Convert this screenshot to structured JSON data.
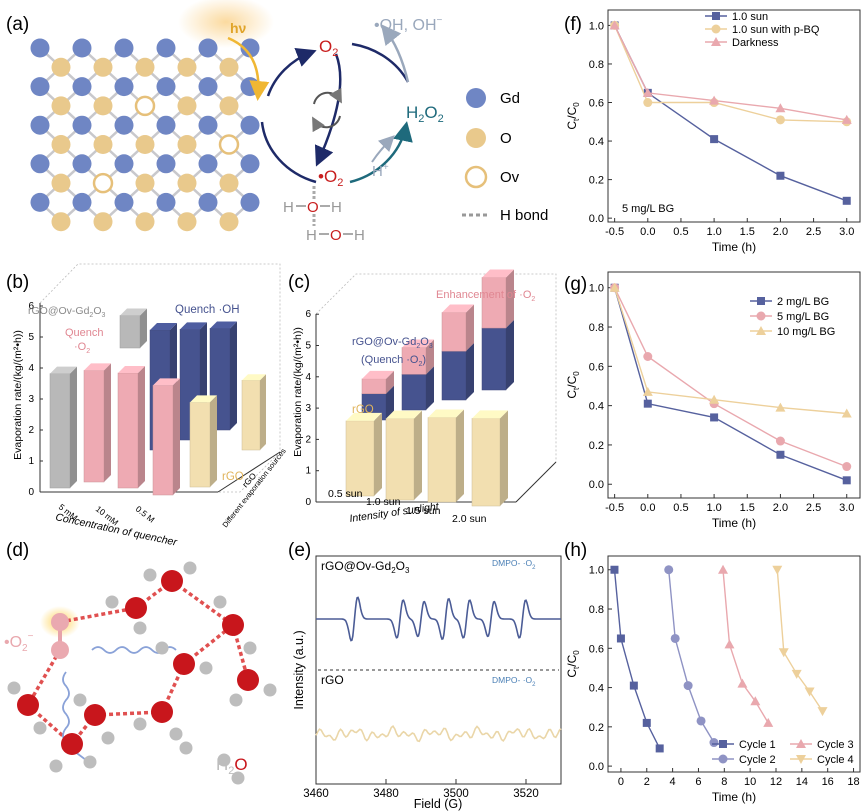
{
  "colors": {
    "gd": "#6f86c4",
    "o": "#e9c98c",
    "ov_stroke": "#e6c07a",
    "bond": "#c8c8cc",
    "navy": "#1e2a68",
    "teal": "#1e6a7c",
    "red": "#c81e1e",
    "slate": "#9aa8bc",
    "s_blue": "#56619e",
    "s_yellow": "#edd09b",
    "s_pink": "#e9a8ae",
    "bar_gray": "#b8b8b8",
    "bar_blue": "#46538f",
    "bar_pink": "#eeaab3",
    "bar_tan": "#f2dfb0",
    "epr_blue": "#4b5c96",
    "epr_tan": "#ead6a8",
    "water_o": "#c8161c",
    "water_h": "#bdbdbd",
    "hbond": "#e05050"
  },
  "panel_a": {
    "letter": "(a)",
    "hv": "hν",
    "o2": "O",
    "o2_sub": "2",
    "oh": "•OH, OH",
    "oh_sup": "−",
    "h2o2": "H",
    "h2o2_mid": "2",
    "h2o2_end": "O",
    "h2o2_sub": "2",
    "superoxide": "•O",
    "superoxide_sub": "2",
    "hplus": "H",
    "hplus_sup": "+",
    "legend": {
      "gd": "Gd",
      "o": "O",
      "ov": "Ov",
      "hbond": "H bond"
    },
    "water_h": "H",
    "water_o": "O"
  },
  "panel_b": {
    "letter": "(b)",
    "ylabel": "Evaporation rate/(kg/(m²•h))",
    "yticks": [
      "0",
      "1",
      "2",
      "3",
      "4",
      "5",
      "6"
    ],
    "xticks": [
      "5 mM",
      "10 mM",
      "0.5 M"
    ],
    "xlabel": "Concentration of quencher",
    "zlabel": "Different evaporation sources",
    "labels": {
      "rgo_gd": "rGO@Ov-Gd",
      "rgo_gd_sub": "2",
      "rgo_gd_end": "O",
      "rgo_gd_sub2": "3",
      "quench_o2": "Quench",
      "quench_o2_b": "·O",
      "quench_oh": "Quench ·OH",
      "rgo": "rGO"
    },
    "bars": {
      "gray": [
        4.1,
        4.2,
        4.2
      ],
      "pink": [
        3.6,
        3.5,
        3.4
      ],
      "blue": [
        4.3,
        4.3,
        4.2
      ],
      "tan": [
        2.6,
        2.6,
        2.5
      ]
    }
  },
  "panel_c": {
    "letter": "(c)",
    "ylabel": "Evaporation rate/(kg/(m²•h))",
    "yticks": [
      "0",
      "1",
      "2",
      "3",
      "4",
      "5",
      "6"
    ],
    "xticks": [
      "0.5 sun",
      "1.0 sun",
      "1.5 sun",
      "2.0 sun"
    ],
    "xlabel": "Intensity of sunlight",
    "labels": {
      "enh": "Enhancement of ·O",
      "rgo_gd": "rGO@Ov-Gd",
      "quench": "(Quench ·O",
      "rgo": "rGO"
    },
    "rgo": [
      2.4,
      2.6,
      2.7,
      2.8
    ],
    "blue": [
      1.4,
      1.9,
      2.6,
      3.3
    ],
    "pink": [
      0.5,
      0.9,
      1.3,
      1.7
    ]
  },
  "panel_d": {
    "letter": "(d)",
    "o2": "•O",
    "h2o_h": "H",
    "h2o_sub": "2",
    "h2o_o": "O"
  },
  "panel_e": {
    "letter": "(e)",
    "top_label": "rGO@Ov-Gd",
    "dmpo": "DMPO- ·O",
    "bottom_label": "rGO",
    "ylabel": "Intensity (a.u.)",
    "xlabel": "Field (G)",
    "xticks": [
      "3460",
      "3480",
      "3500",
      "3520"
    ]
  },
  "chart_data": [
    {
      "type": "line",
      "panel": "(f)",
      "x": [
        -0.5,
        0.0,
        1.0,
        2.0,
        3.0
      ],
      "series": [
        {
          "name": "1.0 sun",
          "values": [
            1.0,
            0.65,
            0.41,
            0.22,
            0.09
          ]
        },
        {
          "name": "1.0 sun with p-BQ",
          "values": [
            1.0,
            0.6,
            0.6,
            0.51,
            0.5
          ]
        },
        {
          "name": "Darkness",
          "values": [
            1.0,
            0.65,
            0.61,
            0.57,
            0.51
          ]
        }
      ],
      "annotation": "5 mg/L BG",
      "xlabel": "Time (h)",
      "ylabel": "C",
      "xlim": [
        -0.6,
        3.2
      ],
      "ylim": [
        -0.02,
        1.08
      ],
      "xticks": [
        -0.5,
        0.0,
        0.5,
        1.0,
        1.5,
        2.0,
        2.5,
        3.0
      ],
      "yticks": [
        0.0,
        0.2,
        0.4,
        0.6,
        0.8,
        1.0
      ],
      "legend": "top-right"
    },
    {
      "type": "line",
      "panel": "(g)",
      "x": [
        -0.5,
        0.0,
        1.0,
        2.0,
        3.0
      ],
      "series": [
        {
          "name": "2 mg/L BG",
          "values": [
            1.0,
            0.41,
            0.34,
            0.15,
            0.02
          ]
        },
        {
          "name": "5 mg/L BG",
          "values": [
            1.0,
            0.65,
            0.41,
            0.22,
            0.09
          ]
        },
        {
          "name": "10 mg/L BG",
          "values": [
            1.0,
            0.47,
            0.43,
            0.39,
            0.36
          ]
        }
      ],
      "xlabel": "Time (h)",
      "ylabel": "C",
      "xlim": [
        -0.6,
        3.2
      ],
      "ylim": [
        -0.07,
        1.08
      ],
      "xticks": [
        -0.5,
        0.0,
        0.5,
        1.0,
        1.5,
        2.0,
        2.5,
        3.0
      ],
      "yticks": [
        0.0,
        0.2,
        0.4,
        0.6,
        0.8,
        1.0
      ],
      "legend": "top-right"
    },
    {
      "type": "line",
      "panel": "(h)",
      "series": [
        {
          "name": "Cycle 1",
          "x": [
            -0.5,
            0,
            1,
            2,
            3
          ],
          "values": [
            1.0,
            0.65,
            0.41,
            0.22,
            0.09
          ]
        },
        {
          "name": "Cycle 2",
          "x": [
            3.7,
            4.2,
            5.2,
            6.2,
            7.2
          ],
          "values": [
            1.0,
            0.65,
            0.41,
            0.23,
            0.12
          ]
        },
        {
          "name": "Cycle 3",
          "x": [
            7.9,
            8.4,
            9.4,
            10.4,
            11.4
          ],
          "values": [
            1.0,
            0.62,
            0.42,
            0.33,
            0.22
          ]
        },
        {
          "name": "Cycle 4",
          "x": [
            12.1,
            12.6,
            13.6,
            14.6,
            15.6
          ],
          "values": [
            1.0,
            0.58,
            0.47,
            0.38,
            0.28
          ]
        }
      ],
      "xlabel": "Time (h)",
      "ylabel": "C",
      "xlim": [
        -1.0,
        18.5
      ],
      "ylim": [
        -0.03,
        1.07
      ],
      "xticks": [
        0,
        2,
        4,
        6,
        8,
        10,
        12,
        14,
        16,
        18
      ],
      "yticks": [
        0.0,
        0.2,
        0.4,
        0.6,
        0.8,
        1.0
      ],
      "legend": "bottom-right"
    }
  ],
  "panel_letters": {
    "f": "(f)",
    "g": "(g)",
    "h": "(h)"
  },
  "axis_sub": {
    "t": "t",
    "zero": "0",
    "slash": "/C"
  }
}
